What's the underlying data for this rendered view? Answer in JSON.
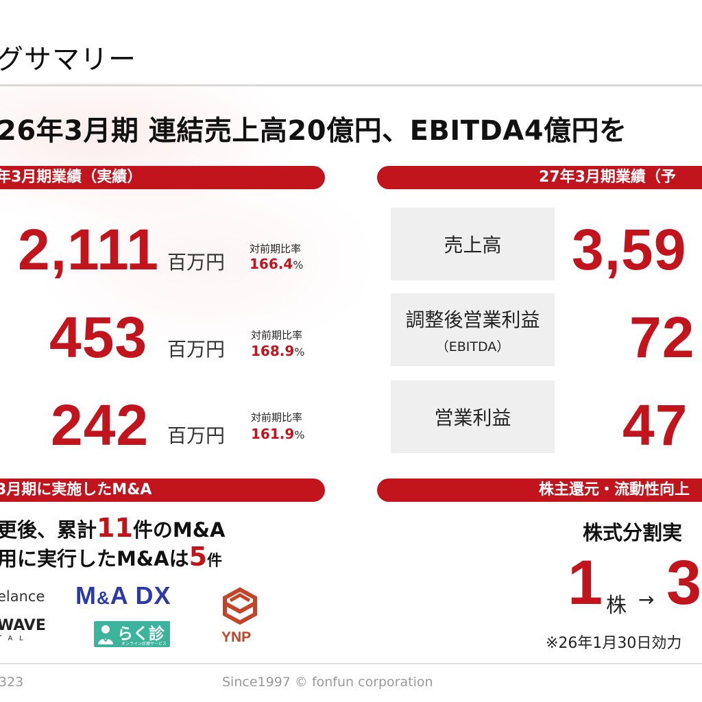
{
  "page_title": "グサマリー",
  "headline": "26年3月期 連結売上高20億円、EBITDA4億円を",
  "left_section": {
    "header": "年3月期業績（実績）",
    "rows": [
      {
        "value": "2,111",
        "unit": "百万円",
        "yoy_label": "対前期比率",
        "yoy_value": "166.4",
        "yoy_pct": "%"
      },
      {
        "value": "453",
        "unit": "百万円",
        "yoy_label": "対前期比率",
        "yoy_value": "168.9",
        "yoy_pct": "%"
      },
      {
        "value": "242",
        "unit": "百万円",
        "yoy_label": "対前期比率",
        "yoy_value": "161.9",
        "yoy_pct": "%"
      }
    ]
  },
  "right_section": {
    "header": "27年3月期業績（予",
    "metrics": [
      {
        "label": "売上高",
        "sublabel": "",
        "value": "3,59"
      },
      {
        "label": "調整後営業利益",
        "sublabel": "（EBITDA）",
        "value": "72"
      },
      {
        "label": "営業利益",
        "sublabel": "",
        "value": "47"
      }
    ]
  },
  "ma_section": {
    "header": "3月期に実施したM&A",
    "line1_prefix": "更後、累計",
    "line1_count": "11",
    "line1_suffix": "件のM&A",
    "line2_prefix": "用に実行したM&Aは",
    "line2_count": "5",
    "line2_suffix": "件",
    "logos": {
      "freelance": "elance",
      "madx_m": "M",
      "madx_amp": "&",
      "madx_a": "A",
      "madx_dx": " DX",
      "wave": "WAVE",
      "wave_sub": "TAL",
      "rakushin": "らく診",
      "rakushin_sub": "オンライン診療サービス",
      "ynp": "YNP"
    }
  },
  "shareholder_section": {
    "header": "株主還元・流動性向上",
    "split_title": "株式分割実",
    "split_from": "1",
    "split_unit": "株",
    "split_arrow": "→",
    "split_to": "3",
    "note": "※26年1月30日効力"
  },
  "footer": {
    "code": "323",
    "copyright": "Since1997 © fonfun corporation"
  },
  "colors": {
    "accent": "#c1141d",
    "box_gray": "#efefef",
    "madx_blue": "#2b3aa8",
    "rakushin_green": "#3cb39b",
    "ynp_orange": "#c0452a"
  }
}
